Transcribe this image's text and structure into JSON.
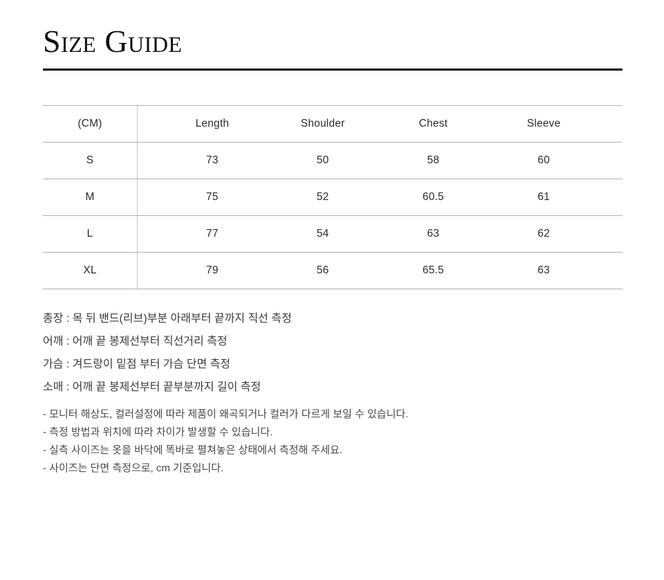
{
  "page": {
    "title": "Size Guide"
  },
  "table": {
    "unit_header": "(CM)",
    "columns": [
      "Length",
      "Shoulder",
      "Chest",
      "Sleeve"
    ],
    "rows": [
      {
        "size": "S",
        "values": [
          "73",
          "50",
          "58",
          "60"
        ]
      },
      {
        "size": "M",
        "values": [
          "75",
          "52",
          "60.5",
          "61"
        ]
      },
      {
        "size": "L",
        "values": [
          "77",
          "54",
          "63",
          "62"
        ]
      },
      {
        "size": "XL",
        "values": [
          "79",
          "56",
          "65.5",
          "63"
        ]
      }
    ]
  },
  "measurement_guide": [
    "총장 : 목 뒤 밴드(리브)부분 아래부터 끝까지 직선 측정",
    "어깨 : 어깨 끝 봉제선부터 직선거리 측정",
    "가슴 : 겨드랑이 밑점 부터 가슴 단면 측정",
    "소매 : 어깨 끝 봉제선부터 끝부분까지 길이 측정"
  ],
  "notes": [
    "- 모니터 해상도, 컬러설정에 따라 제품이 왜곡되거나 컬러가 다르게 보일 수 있습니다.",
    "- 측정 방법과 위치에 따라 차이가 발생할 수 있습니다.",
    "- 실측 사이즈는 옷을 바닥에 똑바로 펼쳐놓은 상태에서 측정해 주세요.",
    "- 사이즈는 단면 측정으로, cm 기준입니다."
  ],
  "colors": {
    "title": "#101010",
    "rule": "#000000",
    "table_border": "#b0b0b0",
    "table_divider": "#c6c6c6",
    "table_text": "#2b2b2b",
    "guide_text": "#3a3a3a",
    "note_text": "#484848",
    "background": "#ffffff"
  }
}
